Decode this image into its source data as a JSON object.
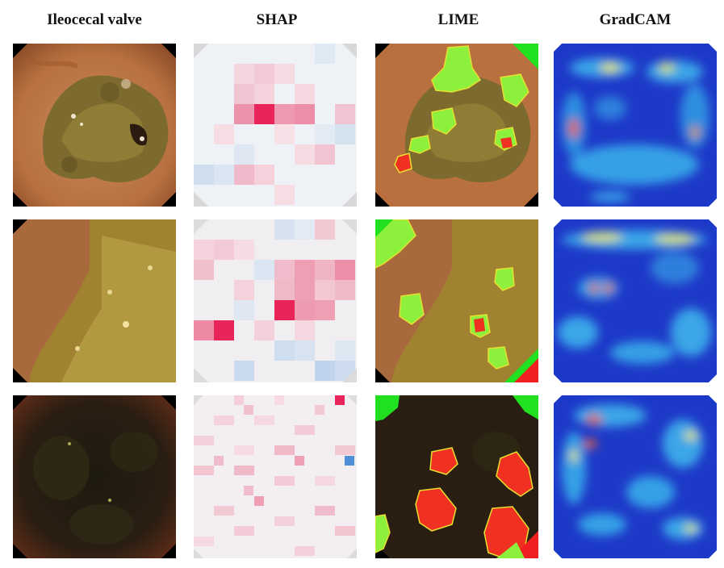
{
  "figure": {
    "columns": [
      {
        "id": "orig",
        "label": "Ileocecal valve"
      },
      {
        "id": "shap",
        "label": "SHAP"
      },
      {
        "id": "lime",
        "label": "LIME"
      },
      {
        "id": "gradcam",
        "label": "GradCAM"
      }
    ],
    "rows": [
      "row-1",
      "row-2",
      "row-3"
    ]
  }
}
